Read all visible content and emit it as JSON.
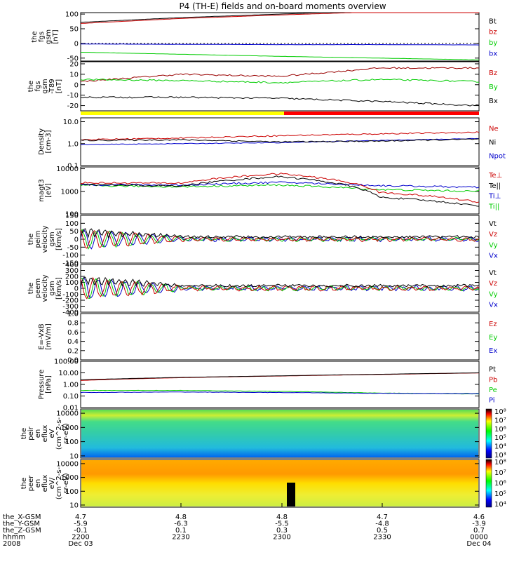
{
  "title": "P4 (TH-E) fields and on-board moments overview",
  "panels": [
    {
      "id": "fgs-gsm",
      "ylabel": [
        "the",
        "fgs",
        "gsm",
        "[nT]"
      ],
      "ticks": [
        "100",
        "50",
        "0",
        "-50"
      ],
      "tickvals": [
        100,
        50,
        0,
        -50
      ],
      "ylim": [
        -60,
        105
      ],
      "log": false,
      "legend": [
        {
          "t": "Bt",
          "c": "#000000"
        },
        {
          "t": "bz",
          "c": "#cc0000"
        },
        {
          "t": "by",
          "c": "#00cc00"
        },
        {
          "t": "bx",
          "c": "#0000cc"
        }
      ]
    },
    {
      "id": "fgs-gse",
      "ylabel": [
        "the",
        "fgs",
        "gsm",
        "-T89",
        "[nT]"
      ],
      "ticks": [
        "20",
        "10",
        "0",
        "-10",
        "-20"
      ],
      "tickvals": [
        20,
        10,
        0,
        -10,
        -20
      ],
      "ylim": [
        -25,
        22
      ],
      "log": false,
      "legend": [
        {
          "t": "Bz",
          "c": "#cc0000"
        },
        {
          "t": "By",
          "c": "#00cc00"
        },
        {
          "t": "Bx",
          "c": "#000000"
        }
      ]
    },
    {
      "id": "density",
      "ylabel": [
        "Density",
        "[cm-3]"
      ],
      "ticks": [
        "10.0",
        "1.0",
        "0.1"
      ],
      "tickvals": [
        10,
        1,
        0.1
      ],
      "ylim": [
        0.1,
        15
      ],
      "log": true,
      "legend": [
        {
          "t": "Ne",
          "c": "#cc0000"
        },
        {
          "t": "Ni",
          "c": "#000000"
        },
        {
          "t": "Npot",
          "c": "#0000cc"
        }
      ]
    },
    {
      "id": "temp",
      "ylabel": [
        "magt3",
        "[eV]"
      ],
      "ticks": [
        "10000",
        "1000",
        "100"
      ],
      "tickvals": [
        10000,
        1000,
        100
      ],
      "ylim": [
        100,
        12000
      ],
      "log": true,
      "legend": [
        {
          "t": "Te⊥",
          "c": "#cc0000"
        },
        {
          "t": "Te||",
          "c": "#000000"
        },
        {
          "t": "Ti⊥",
          "c": "#0000cc"
        },
        {
          "t": "Ti||",
          "c": "#00cc00"
        }
      ]
    },
    {
      "id": "peim",
      "ylabel": [
        "the",
        "peim",
        "velocity",
        "gsm",
        "[km/s]"
      ],
      "ticks": [
        "150",
        "100",
        "50",
        "0",
        "-50",
        "-100",
        "-150"
      ],
      "tickvals": [
        150,
        100,
        50,
        0,
        -50,
        -100,
        -150
      ],
      "ylim": [
        -150,
        150
      ],
      "log": false,
      "legend": [
        {
          "t": "Vt",
          "c": "#000000"
        },
        {
          "t": "Vz",
          "c": "#cc0000"
        },
        {
          "t": "Vy",
          "c": "#00cc00"
        },
        {
          "t": "Vx",
          "c": "#0000cc"
        }
      ]
    },
    {
      "id": "peem",
      "ylabel": [
        "the",
        "peem",
        "velocity",
        "gsm",
        "[km/s]"
      ],
      "ticks": [
        "400",
        "300",
        "200",
        "100",
        "0",
        "-100",
        "-200",
        "-300",
        "-400"
      ],
      "tickvals": [
        400,
        300,
        200,
        100,
        0,
        -100,
        -200,
        -300,
        -400
      ],
      "ylim": [
        -400,
        400
      ],
      "log": false,
      "legend": [
        {
          "t": "Vt",
          "c": "#000000"
        },
        {
          "t": "Vz",
          "c": "#cc0000"
        },
        {
          "t": "Vy",
          "c": "#00cc00"
        },
        {
          "t": "Vx",
          "c": "#0000cc"
        }
      ]
    },
    {
      "id": "exb",
      "ylabel": [
        "E=-VxB",
        "[mV/m]"
      ],
      "ticks": [
        "1.0",
        "0.8",
        "0.6",
        "0.4",
        "0.2",
        "0.0"
      ],
      "tickvals": [
        1,
        0.8,
        0.6,
        0.4,
        0.2,
        0
      ],
      "ylim": [
        0,
        1
      ],
      "log": false,
      "legend": [
        {
          "t": "Ez",
          "c": "#cc0000"
        },
        {
          "t": "Ey",
          "c": "#00cc00"
        },
        {
          "t": "Ex",
          "c": "#0000cc"
        }
      ]
    },
    {
      "id": "pressure",
      "ylabel": [
        "Pressure",
        "[nPa]"
      ],
      "ticks": [
        "100.00",
        "10.00",
        "1.00",
        "0.10",
        "0.01"
      ],
      "tickvals": [
        100,
        10,
        1,
        0.1,
        0.01
      ],
      "ylim": [
        0.01,
        100
      ],
      "log": true,
      "legend": [
        {
          "t": "Pt",
          "c": "#000000"
        },
        {
          "t": "Pb",
          "c": "#cc0000"
        },
        {
          "t": "Pe",
          "c": "#00cc00"
        },
        {
          "t": "Pi",
          "c": "#0000cc"
        }
      ]
    },
    {
      "id": "peir",
      "ylabel": [
        "the",
        "peir",
        "en",
        "eflux",
        "eV",
        "(cm^2-s-",
        "sr-eV)"
      ],
      "ticks": [
        "10000",
        "1000",
        "100",
        "10"
      ],
      "tickvals": [
        10000,
        1000,
        100,
        10
      ],
      "ylim": [
        7,
        20000
      ],
      "log": true,
      "legend": []
    },
    {
      "id": "peer",
      "ylabel": [
        "the",
        "peer",
        "en",
        "eflux",
        "eV/",
        "(cm^2-s-",
        "sr-eV)"
      ],
      "ticks": [
        "10000",
        "1000",
        "100",
        "10"
      ],
      "tickvals": [
        10000,
        1000,
        100,
        10
      ],
      "ylim": [
        7,
        20000
      ],
      "log": true,
      "legend": []
    }
  ],
  "colorbar1": [
    "10⁸",
    "10⁷",
    "10⁶",
    "10⁵",
    "10⁴",
    "10³"
  ],
  "colorbar2": [
    "10⁸",
    "10⁷",
    "10⁶",
    "10⁵",
    "10⁴"
  ],
  "xaxis": {
    "rows": [
      {
        "label": "the_X-GSM",
        "values": [
          "4.7",
          "4.8",
          "4.8",
          "4.7",
          "4.6"
        ]
      },
      {
        "label": "the_Y-GSM",
        "values": [
          "-5.9",
          "-6.3",
          "-5.5",
          "-4.8",
          "-3.9"
        ]
      },
      {
        "label": "the_Z-GSM",
        "values": [
          "-0.1",
          "0.1",
          "0.3",
          "0.5",
          "0.7"
        ]
      },
      {
        "label": "hhmm",
        "values": [
          "2200",
          "2230",
          "2300",
          "2330",
          "0000"
        ]
      },
      {
        "label": "2008",
        "values": [
          "Dec 03",
          "",
          "",
          "",
          "Dec 04"
        ]
      }
    ]
  },
  "chart_data": {
    "type": "line",
    "title": "P4 (TH-E) fields and on-board moments overview",
    "x": [
      "2200",
      "2230",
      "2300",
      "2330",
      "0000"
    ],
    "series": [
      {
        "name": "Bt",
        "values": [
          72,
          88,
          100,
          112,
          120
        ]
      },
      {
        "name": "bz",
        "values": [
          68,
          85,
          97,
          108,
          118
        ]
      },
      {
        "name": "by",
        "values": [
          -2,
          -3,
          -4,
          -4,
          -5
        ]
      },
      {
        "name": "bx",
        "values": [
          -30,
          -37,
          -44,
          -50,
          -56
        ]
      },
      {
        "name": "Bz",
        "values": [
          3,
          10,
          8,
          16,
          16
        ]
      },
      {
        "name": "By",
        "values": [
          5,
          4,
          2,
          5,
          3
        ]
      },
      {
        "name": "Bx",
        "values": [
          -12,
          -12,
          -13,
          -16,
          -20
        ]
      },
      {
        "name": "Ne",
        "values": [
          1.5,
          1.8,
          2.3,
          2.8,
          3.3
        ]
      },
      {
        "name": "Ni",
        "values": [
          1.4,
          1.5,
          1.2,
          1.3,
          1.6
        ]
      },
      {
        "name": "Npot",
        "values": [
          0.9,
          1.0,
          1.1,
          1.4,
          1.7
        ]
      },
      {
        "name": "Te⊥",
        "values": [
          2400,
          2300,
          6000,
          900,
          330
        ]
      },
      {
        "name": "Te||",
        "values": [
          2000,
          1700,
          4500,
          550,
          220
        ]
      },
      {
        "name": "Ti⊥",
        "values": [
          2000,
          1900,
          2500,
          1800,
          1500
        ]
      },
      {
        "name": "Ti||",
        "values": [
          1800,
          1600,
          1900,
          1200,
          1000
        ]
      },
      {
        "name": "Pt",
        "values": [
          2.5,
          4.0,
          5.5,
          7.5,
          10
        ]
      },
      {
        "name": "Pb",
        "values": [
          2.2,
          3.8,
          5.3,
          7.2,
          9.8
        ]
      },
      {
        "name": "Pe",
        "values": [
          0.3,
          0.3,
          0.25,
          0.18,
          0.15
        ]
      },
      {
        "name": "Pi",
        "values": [
          0.2,
          0.22,
          0.2,
          0.17,
          0.16
        ]
      }
    ]
  }
}
